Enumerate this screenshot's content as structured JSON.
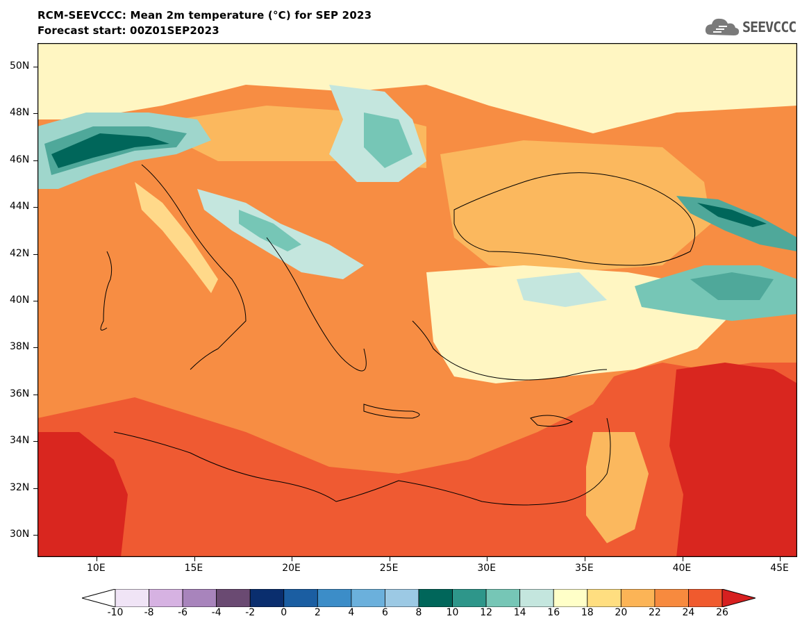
{
  "title_line1": "RCM-SEEVCCC: Mean 2m temperature (°C) for SEP 2023",
  "title_line2": "Forecast start: 00Z01SEP2023",
  "logo_text": "SEEVCCC",
  "lat_ticks": [
    "50N",
    "48N",
    "46N",
    "44N",
    "42N",
    "40N",
    "38N",
    "36N",
    "34N",
    "32N",
    "30N"
  ],
  "lon_ticks": [
    "10E",
    "15E",
    "20E",
    "25E",
    "30E",
    "35E",
    "40E",
    "45E"
  ],
  "colorbar": {
    "labels": [
      "-10",
      "-8",
      "-6",
      "-4",
      "-2",
      "0",
      "2",
      "4",
      "6",
      "8",
      "10",
      "12",
      "14",
      "16",
      "18",
      "20",
      "22",
      "24",
      "26"
    ],
    "colors": [
      "#ffffff",
      "#f0e4f6",
      "#d6b2e2",
      "#a884bc",
      "#6a4a72",
      "#0a2e6e",
      "#1b5ea2",
      "#3c8dc8",
      "#6bb0dc",
      "#9cc9e4",
      "#00665a",
      "#2e968a",
      "#76c6b6",
      "#c4e6de",
      "#ffffc8",
      "#ffde80",
      "#fcb456",
      "#f78a3e",
      "#f05a2e",
      "#d72020"
    ]
  },
  "palette": {
    "cool": "#9fd6cc",
    "cooler": "#4fa89a",
    "coldest": "#00665a",
    "pale": "#fff6c2",
    "light": "#ffd98a",
    "mid": "#fbb85e",
    "warm": "#f78d43",
    "hot": "#ef5a32",
    "hottest": "#d9261f"
  }
}
